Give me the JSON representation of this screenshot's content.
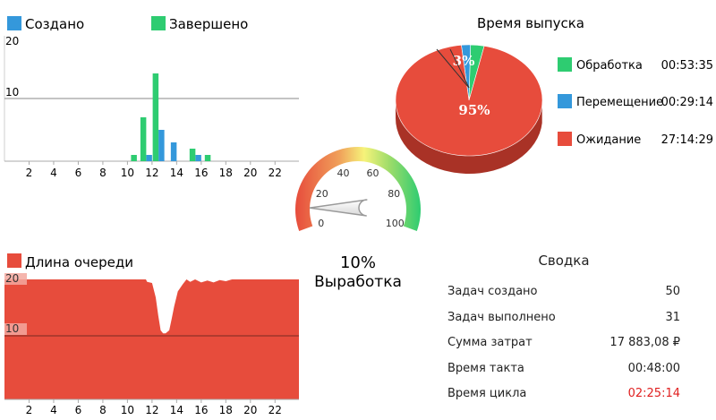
{
  "colors": {
    "created": "#3498db",
    "completed": "#2ecc71",
    "queue": "#e74c3c",
    "processing": "#2ecc71",
    "moving": "#3498db",
    "waiting": "#e74c3c",
    "highlight": "#e01f1f"
  },
  "chart_data": [
    {
      "type": "bar",
      "legend": [
        "Создано",
        "Завершено"
      ],
      "x": [
        1,
        2,
        3,
        4,
        5,
        6,
        7,
        8,
        9,
        10,
        11,
        12,
        13,
        14,
        15,
        16,
        17,
        18,
        19,
        20,
        21,
        22,
        23
      ],
      "series": [
        {
          "name": "Создано",
          "values": [
            0,
            0,
            0,
            0,
            0,
            0,
            0,
            0,
            0,
            0,
            0,
            1,
            5,
            3,
            0,
            1,
            0,
            0,
            0,
            0,
            0,
            0,
            0
          ]
        },
        {
          "name": "Завершено",
          "values": [
            0,
            0,
            0,
            0,
            0,
            0,
            0,
            0,
            0,
            0,
            1,
            7,
            14,
            0,
            0,
            2,
            1,
            0,
            0,
            0,
            0,
            0,
            0
          ]
        }
      ],
      "xticks": [
        2,
        4,
        6,
        8,
        10,
        12,
        14,
        16,
        18,
        20,
        22
      ],
      "yticks": [
        10,
        20
      ],
      "ylim": [
        0,
        20
      ],
      "reference_line": 10,
      "legend_position": "top-left"
    },
    {
      "type": "area",
      "legend": [
        "Длина очереди"
      ],
      "xticks": [
        2,
        4,
        6,
        8,
        10,
        12,
        14,
        16,
        18,
        20,
        22
      ],
      "yticks": [
        10,
        20
      ],
      "ylim": [
        0,
        20
      ],
      "reference_line": 10,
      "series": [
        {
          "name": "Длина очереди",
          "points": [
            [
              0.5,
              20
            ],
            [
              11,
              20
            ],
            [
              11.5,
              20
            ],
            [
              11.6,
              19.6
            ],
            [
              12,
              19.4
            ],
            [
              12.3,
              17
            ],
            [
              12.5,
              14
            ],
            [
              12.7,
              11.5
            ],
            [
              12.9,
              11
            ],
            [
              13.1,
              11
            ],
            [
              13.4,
              11.5
            ],
            [
              13.6,
              13.5
            ],
            [
              13.8,
              15.5
            ],
            [
              14.1,
              18
            ],
            [
              14.5,
              19.2
            ],
            [
              14.8,
              20
            ],
            [
              15.1,
              19.6
            ],
            [
              15.5,
              20
            ],
            [
              16,
              19.5
            ],
            [
              16.5,
              19.8
            ],
            [
              17,
              19.5
            ],
            [
              17.5,
              19.9
            ],
            [
              18,
              19.7
            ],
            [
              18.5,
              20
            ],
            [
              19,
              20
            ],
            [
              24,
              20
            ]
          ]
        }
      ]
    },
    {
      "type": "pie",
      "title": "Время выпуска",
      "slices": [
        {
          "label": "Обработка",
          "value": 3,
          "display": "3%",
          "time": "00:53:35"
        },
        {
          "label": "Перемещение",
          "value": 2,
          "display": "",
          "time": "00:29:14"
        },
        {
          "label": "Ожидание",
          "value": 95,
          "display": "95%",
          "time": "27:14:29"
        }
      ]
    },
    {
      "type": "gauge",
      "title": "Выработка",
      "value": 10,
      "value_label": "10%",
      "min": 0,
      "max": 100,
      "ticks": [
        0,
        20,
        40,
        60,
        80,
        100
      ]
    }
  ],
  "summary": {
    "title": "Сводка",
    "rows": [
      {
        "label": "Задач создано",
        "value": "50"
      },
      {
        "label": "Задач выполнено",
        "value": "31"
      },
      {
        "label": "Сумма затрат",
        "value": "17 883,08 ₽"
      },
      {
        "label": "Время такта",
        "value": "00:48:00"
      },
      {
        "label": "Время цикла",
        "value": "02:25:14",
        "highlight": true
      }
    ]
  }
}
